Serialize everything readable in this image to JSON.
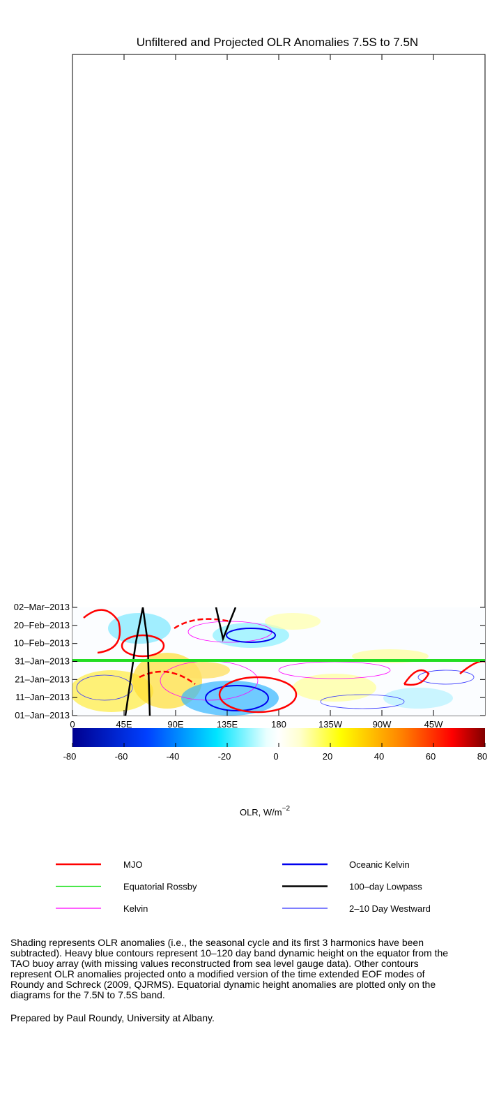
{
  "title": "Unfiltered and Projected OLR Anomalies 7.5S to 7.5N",
  "x_ticks": [
    "0",
    "45E",
    "90E",
    "135E",
    "180",
    "135W",
    "90W",
    "45W"
  ],
  "y_ticks": [
    "02–Mar–2013",
    "20–Feb–2013",
    "10–Feb–2013",
    "31–Jan–2013",
    "21–Jan–2013",
    "11–Jan–2013",
    "01–Jan–2013"
  ],
  "colorbar": {
    "ticks": [
      -80,
      -60,
      -40,
      -20,
      0,
      20,
      40,
      60,
      80
    ],
    "label": "OLR, W/m",
    "label_superscript": "−2"
  },
  "legend": [
    {
      "name": "MJO",
      "color": "#ff0000",
      "width": 2.5
    },
    {
      "name": "Equatorial Rossby",
      "color": "#00dd00",
      "width": 1.2
    },
    {
      "name": "Kelvin",
      "color": "#ff00ff",
      "width": 1.2
    },
    {
      "name": "Oceanic Kelvin",
      "color": "#0000ee",
      "width": 2.5
    },
    {
      "name": "100–day Lowpass",
      "color": "#000000",
      "width": 2.5
    },
    {
      "name": "2–10 Day Westward",
      "color": "#3333ff",
      "width": 1.2
    }
  ],
  "caption": [
    "Shading represents OLR anomalies (i.e., the seasonal cycle and its first 3 harmonics have been",
    "subtracted). Heavy blue contours represent 10–120 day band dynamic height on the equator from the",
    "TAO buoy array (with missing values reconstructed from sea level gauge data). Other contours",
    "represent OLR anomalies projected onto a modified version of the time extended EOF modes of",
    "Roundy and Schreck (2009, QJRMS). Equatorial dynamic height anomalies are plotted only on the",
    "diagrams for the 7.5N to 7.5S band."
  ],
  "credit": "Prepared by Paul Roundy, University at Albany."
}
